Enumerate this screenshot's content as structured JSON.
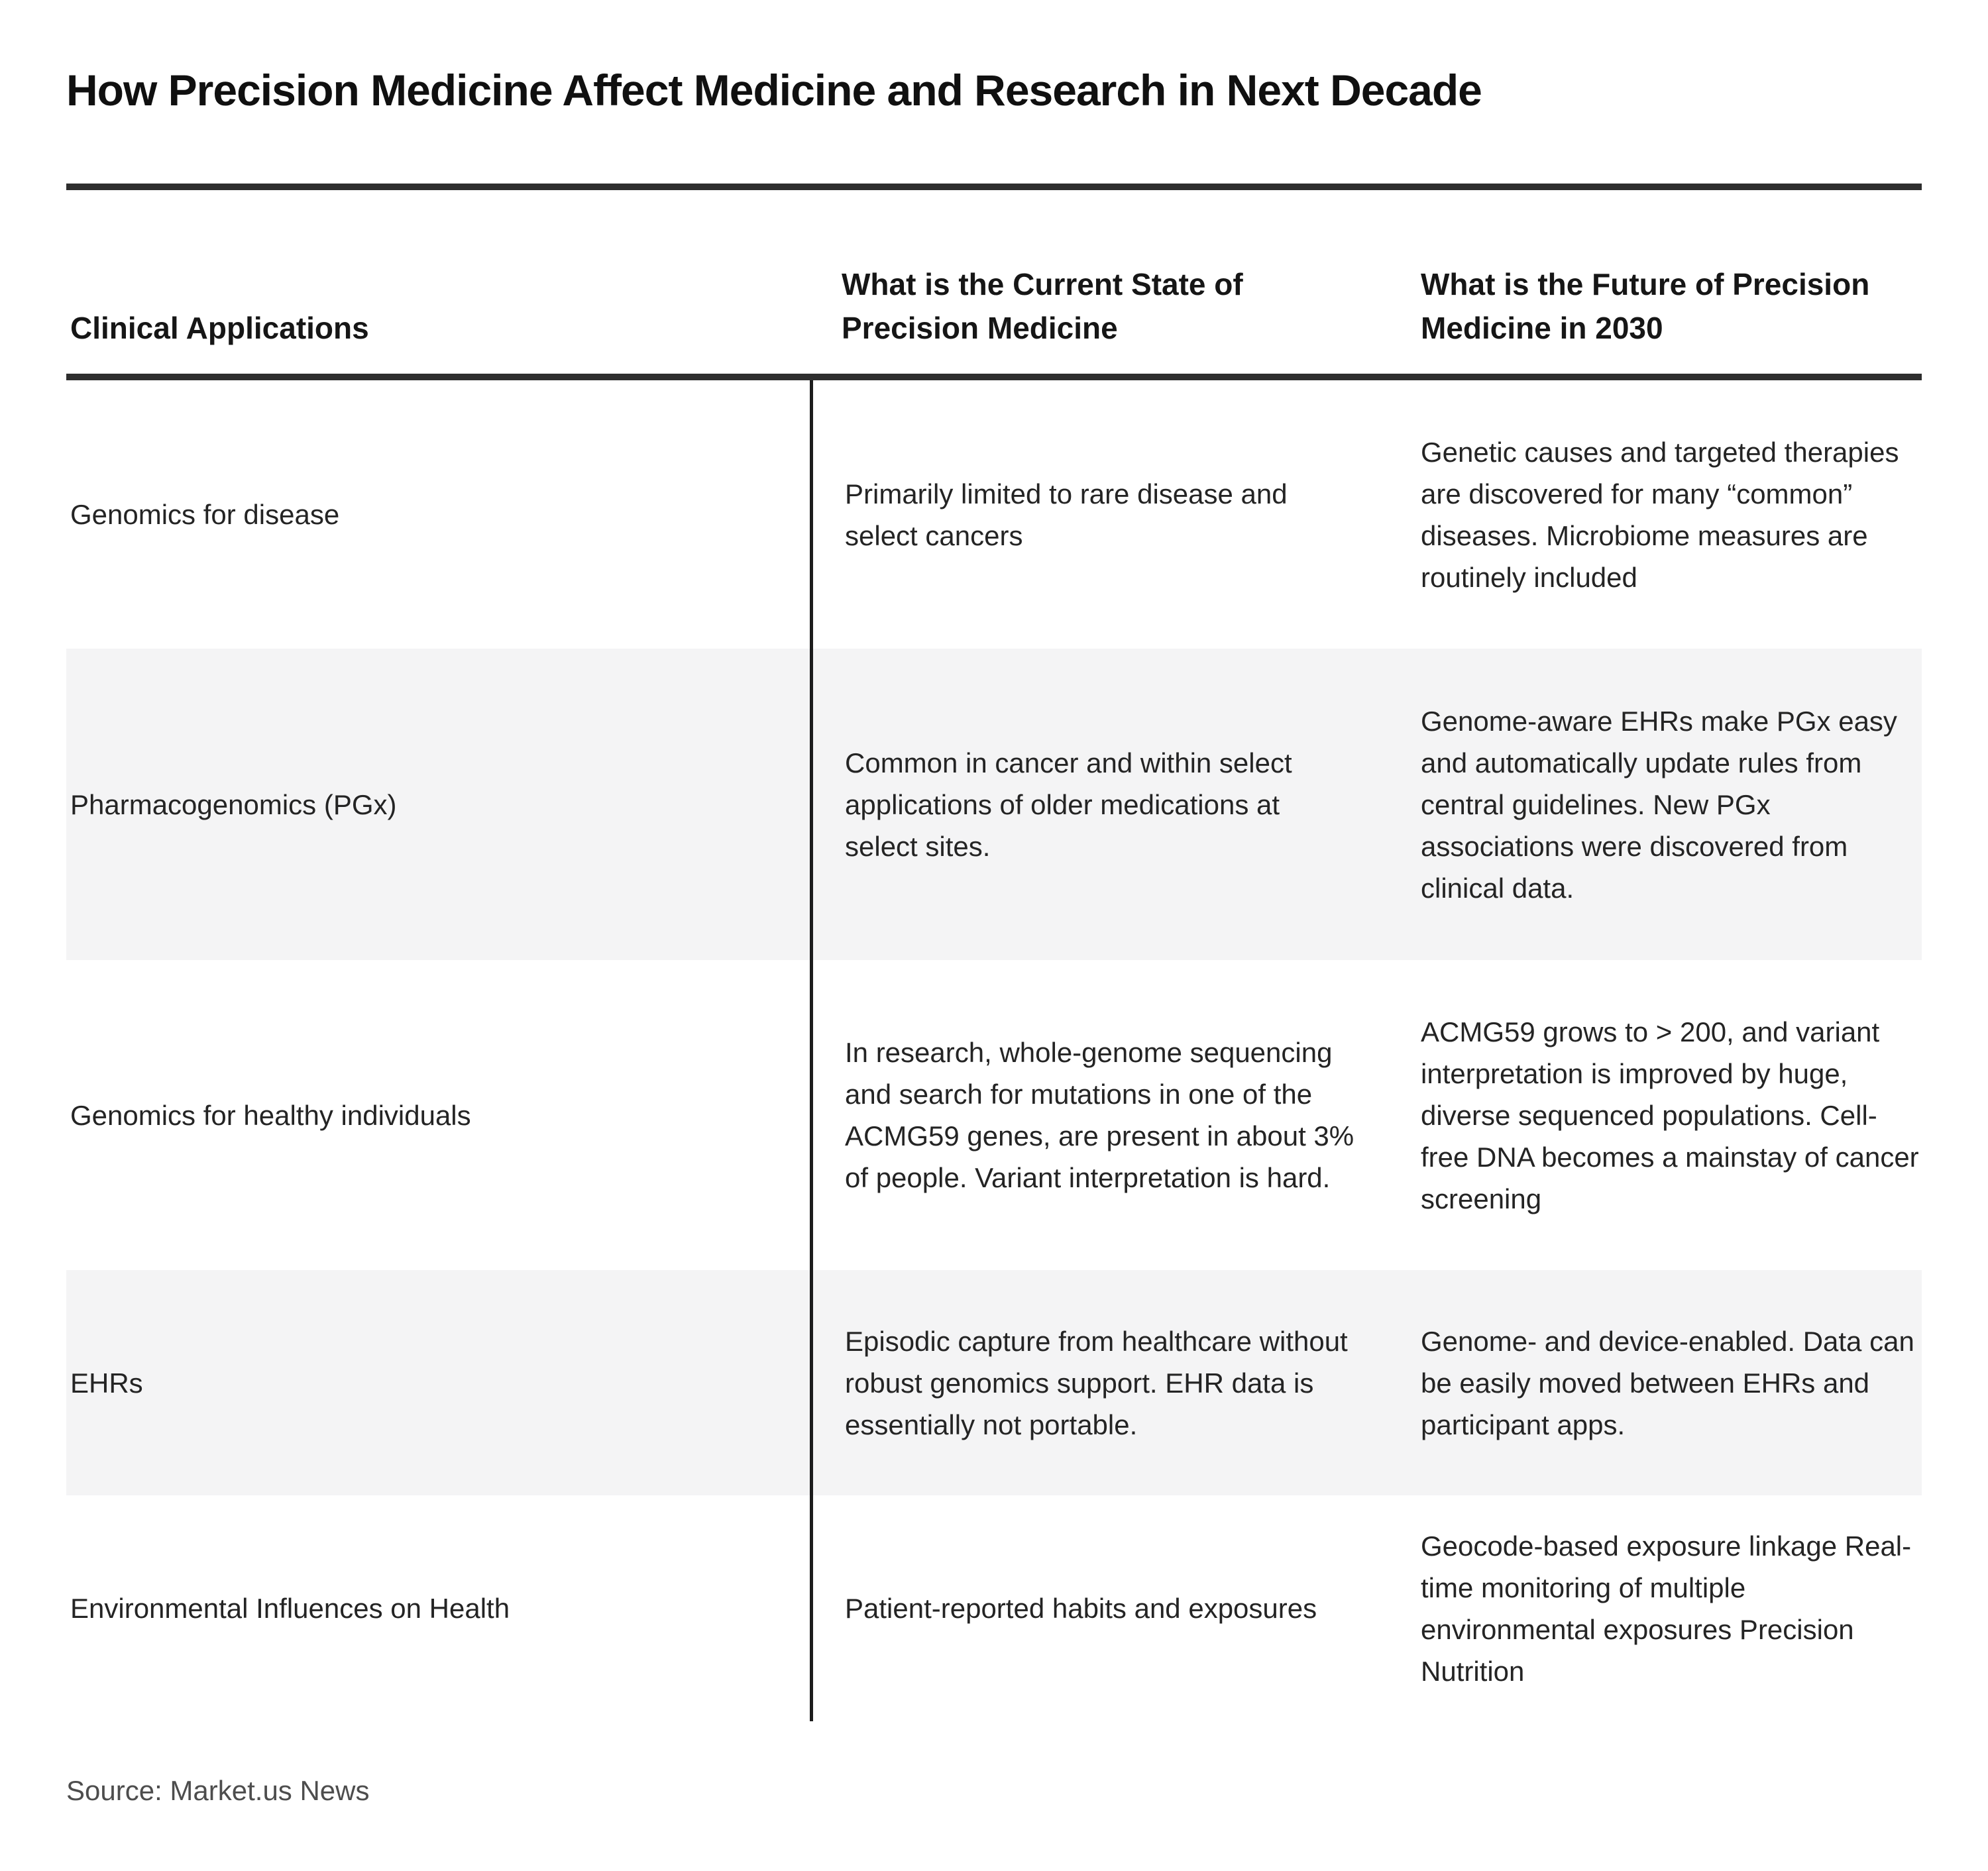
{
  "title": "How Precision Medicine Affect Medicine and Research in Next Decade",
  "source_note": "Source: Market.us News",
  "colors": {
    "rule_dark": "#2e2e2e",
    "divider_dark": "#1c1c1c",
    "row_alt_background": "#f4f4f5",
    "title_text": "#101010",
    "body_text": "#242424",
    "source_text": "#4d4d4d"
  },
  "table": {
    "columns": [
      "Clinical Applications",
      "What is the Current State of Precision Medicine",
      "What is the Future of Precision Medicine in 2030"
    ],
    "rows": [
      {
        "application": "Genomics for disease",
        "current": "Primarily limited to rare disease and select cancers",
        "future": "Genetic causes and targeted therapies are discovered for many “common” diseases. Microbiome measures are routinely included"
      },
      {
        "application": "Pharmacogenomics (PGx)",
        "current": "Common in cancer and within select applications of older medications at select sites.",
        "future": "Genome-aware EHRs make PGx easy and automatically update rules from central guidelines. New PGx associations were discovered from clinical data."
      },
      {
        "application": "Genomics for healthy individuals",
        "current": "In research, whole-genome sequencing and search for mutations in one of the ACMG59 genes, are present in about 3% of people. Variant interpretation is hard.",
        "future": "ACMG59 grows to > 200, and variant interpretation is improved by huge, diverse sequenced populations. Cell-free DNA becomes a mainstay of cancer screening"
      },
      {
        "application": "EHRs",
        "current": "Episodic capture from healthcare without robust genomics support. EHR data is essentially not portable.",
        "future": "Genome- and device-enabled. Data can be easily moved between EHRs and participant apps."
      },
      {
        "application": "Environmental Influences on Health",
        "current": "Patient-reported habits and exposures",
        "future": "Geocode-based exposure linkage Real-time monitoring of multiple environmental exposures Precision Nutrition"
      }
    ]
  },
  "chart_data": {
    "type": "table",
    "title": "How Precision Medicine Affect Medicine and Research in Next Decade",
    "columns": [
      "Clinical Applications",
      "What is the Current State of Precision Medicine",
      "What is the Future of Precision Medicine in 2030"
    ],
    "rows": [
      [
        "Genomics for disease",
        "Primarily limited to rare disease and select cancers",
        "Genetic causes and targeted therapies are discovered for many “common” diseases. Microbiome measures are routinely included"
      ],
      [
        "Pharmacogenomics (PGx)",
        "Common in cancer and within select applications of older medications at select sites.",
        "Genome-aware EHRs make PGx easy and automatically update rules from central guidelines. New PGx associations were discovered from clinical data."
      ],
      [
        "Genomics for healthy individuals",
        "In research, whole-genome sequencing and search for mutations in one of the ACMG59 genes, are present in about 3% of people. Variant interpretation is hard.",
        "ACMG59 grows to > 200, and variant interpretation is improved by huge, diverse sequenced populations. Cell-free DNA becomes a mainstay of cancer screening"
      ],
      [
        "EHRs",
        "Episodic capture from healthcare without robust genomics support. EHR data is essentially not portable.",
        "Genome- and device-enabled. Data can be easily moved between EHRs and participant apps."
      ],
      [
        "Environmental Influences on Health",
        "Patient-reported habits and exposures",
        "Geocode-based exposure linkage Real-time monitoring of multiple environmental exposures Precision Nutrition"
      ]
    ],
    "layout": {
      "alternating_row_shading": true,
      "shaded_rows": [
        2,
        4
      ],
      "vertical_divider_after_column": 1,
      "header_alignment": "bottom",
      "source_note": "Source: Market.us News"
    }
  }
}
